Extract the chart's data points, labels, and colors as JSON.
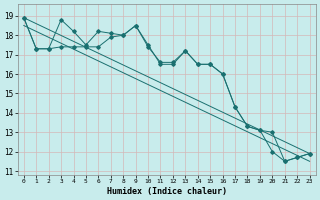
{
  "xlabel": "Humidex (Indice chaleur)",
  "bg_color": "#c8ecec",
  "grid_color": "#d4b8b8",
  "line_color": "#1a7070",
  "xlim": [
    -0.5,
    23.5
  ],
  "ylim": [
    10.8,
    19.6
  ],
  "yticks": [
    11,
    12,
    13,
    14,
    15,
    16,
    17,
    18,
    19
  ],
  "xticks": [
    0,
    1,
    2,
    3,
    4,
    5,
    6,
    7,
    8,
    9,
    10,
    11,
    12,
    13,
    14,
    15,
    16,
    17,
    18,
    19,
    20,
    21,
    22,
    23
  ],
  "line1_x": [
    0,
    1,
    2,
    3,
    4,
    5,
    6,
    7,
    8,
    9,
    10,
    11,
    12,
    13,
    14,
    15,
    16,
    17,
    18,
    19,
    20,
    21,
    22,
    23
  ],
  "line1_y": [
    18.9,
    17.3,
    17.3,
    18.8,
    18.2,
    17.5,
    18.2,
    18.1,
    18.0,
    18.5,
    17.4,
    16.6,
    16.6,
    17.2,
    16.5,
    16.5,
    16.0,
    14.3,
    13.3,
    13.1,
    12.0,
    11.5,
    11.7,
    11.9
  ],
  "line2_x": [
    0,
    1,
    2,
    3,
    4,
    5,
    6,
    7,
    8,
    9,
    10,
    11,
    12,
    13,
    14,
    15,
    16,
    17,
    18,
    19,
    20,
    21,
    22,
    23
  ],
  "line2_y": [
    18.9,
    17.3,
    17.3,
    17.4,
    17.4,
    17.4,
    17.4,
    17.9,
    18.0,
    18.5,
    17.5,
    16.5,
    16.5,
    17.2,
    16.5,
    16.5,
    16.0,
    14.3,
    13.3,
    13.1,
    13.0,
    11.5,
    11.7,
    11.9
  ],
  "line3_x": [
    0,
    23
  ],
  "line3_y": [
    18.9,
    11.9
  ],
  "line4_x": [
    0,
    23
  ],
  "line4_y": [
    18.5,
    11.5
  ]
}
